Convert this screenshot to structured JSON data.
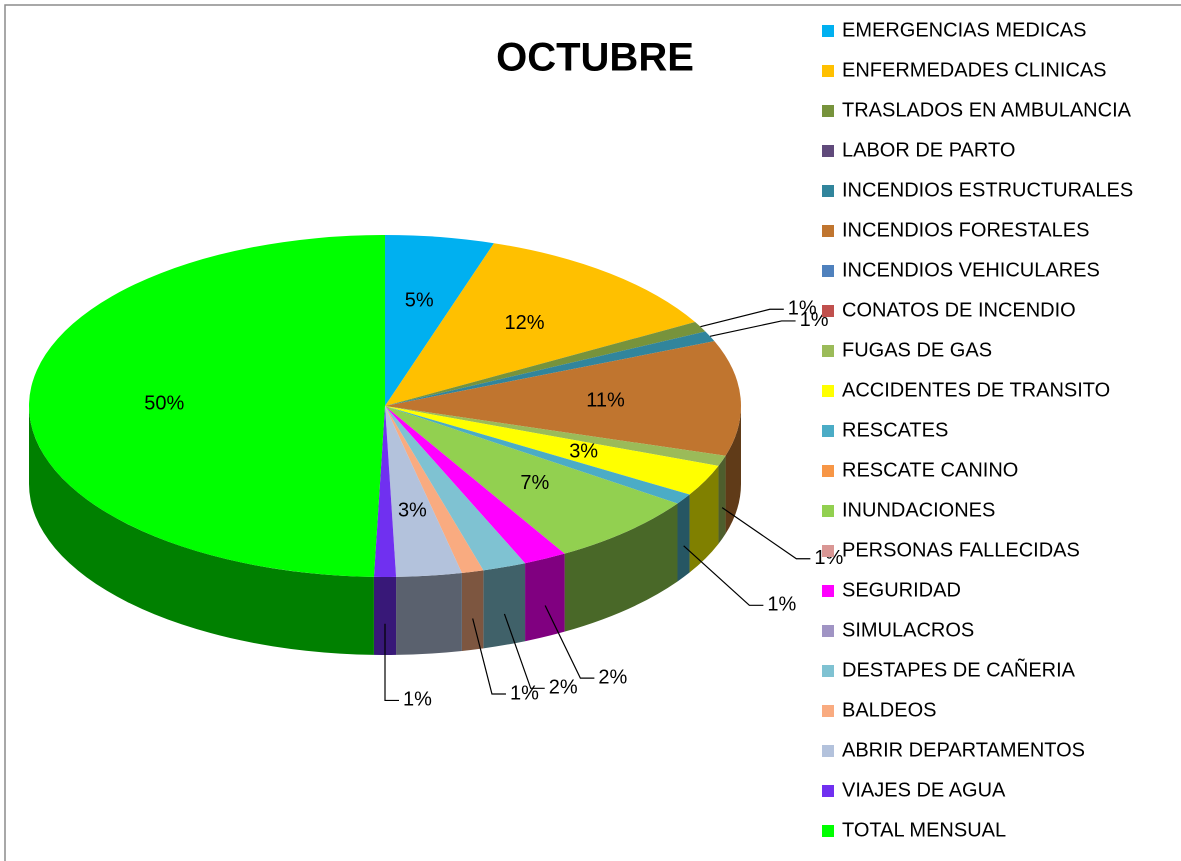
{
  "chart_data": {
    "type": "pie",
    "title": "OCTUBRE",
    "categories": [
      "EMERGENCIAS MEDICAS",
      "ENFERMEDADES CLINICAS",
      "TRASLADOS EN AMBULANCIA",
      "LABOR DE PARTO",
      "INCENDIOS ESTRUCTURALES",
      "INCENDIOS FORESTALES",
      "INCENDIOS VEHICULARES",
      "CONATOS DE INCENDIO",
      "FUGAS DE GAS",
      "ACCIDENTES DE TRANSITO",
      "RESCATES",
      "RESCATE CANINO",
      "INUNDACIONES",
      "PERSONAS FALLECIDAS",
      "SEGURIDAD",
      "SIMULACROS",
      "DESTAPES DE CAÑERIA",
      "BALDEOS",
      "ABRIR DEPARTAMENTOS",
      "VIAJES DE AGUA",
      "TOTAL MENSUAL"
    ],
    "values": [
      5,
      12,
      1,
      0,
      1,
      11,
      0,
      0,
      1,
      3,
      1,
      0,
      7,
      0,
      2,
      0,
      2,
      1,
      3,
      1,
      50
    ],
    "value_labels": [
      "5%",
      "12%",
      "1%",
      null,
      "1%",
      "11%",
      null,
      null,
      "1%",
      "3%",
      "1%",
      null,
      "7%",
      null,
      "2%",
      null,
      "2%",
      "1%",
      "3%",
      "1%",
      "50%"
    ],
    "colors": [
      "#00b0f0",
      "#ffc000",
      "#77933c",
      "#604a7b",
      "#31859c",
      "#c0752f",
      "#4f81bd",
      "#c0504d",
      "#9bbb59",
      "#ffff00",
      "#4bacc6",
      "#f79646",
      "#92d050",
      "#d99694",
      "#ff00ff",
      "#a094c4",
      "#7fc2d2",
      "#f9ab80",
      "#b3c2dc",
      "#7030f0",
      "#00ff00"
    ],
    "legend": "right"
  }
}
